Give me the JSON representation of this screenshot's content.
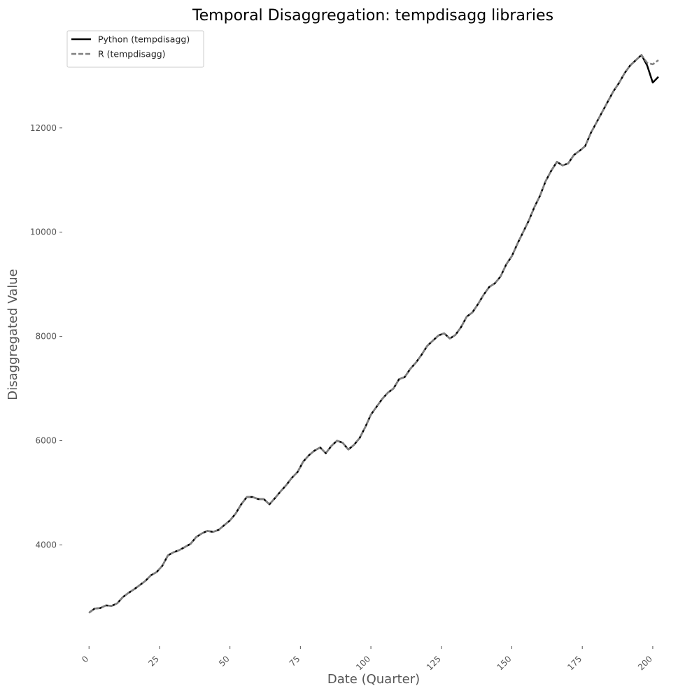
{
  "chart_data": {
    "type": "line",
    "title": "Temporal Disaggregation: tempdisagg libraries",
    "x_label": "Date (Quarter)",
    "y_label": "Disaggregated Value",
    "x": [
      0,
      2,
      4,
      6,
      8,
      10,
      12,
      14,
      16,
      18,
      20,
      22,
      24,
      26,
      28,
      30,
      32,
      34,
      36,
      38,
      40,
      42,
      44,
      46,
      48,
      50,
      52,
      54,
      56,
      58,
      60,
      62,
      64,
      66,
      68,
      70,
      72,
      74,
      76,
      78,
      80,
      82,
      84,
      86,
      88,
      90,
      92,
      94,
      96,
      98,
      100,
      102,
      104,
      106,
      108,
      110,
      112,
      114,
      116,
      118,
      120,
      122,
      124,
      126,
      128,
      130,
      132,
      134,
      136,
      138,
      140,
      142,
      144,
      146,
      148,
      150,
      152,
      154,
      156,
      158,
      160,
      162,
      164,
      166,
      168,
      170,
      172,
      174,
      176,
      178,
      180,
      182,
      184,
      186,
      188,
      190,
      192,
      194,
      196,
      198,
      200,
      202
    ],
    "series": [
      {
        "name": "Python (tempdisagg)",
        "color": "#000000",
        "linestyle": "solid",
        "values": [
          2700,
          2780,
          2790,
          2840,
          2830,
          2880,
          3000,
          3080,
          3150,
          3230,
          3310,
          3420,
          3480,
          3600,
          3800,
          3860,
          3900,
          3960,
          4020,
          4150,
          4220,
          4270,
          4250,
          4290,
          4380,
          4470,
          4600,
          4780,
          4920,
          4920,
          4880,
          4880,
          4780,
          4900,
          5030,
          5150,
          5290,
          5400,
          5600,
          5720,
          5810,
          5870,
          5760,
          5900,
          6000,
          5960,
          5830,
          5920,
          6050,
          6260,
          6500,
          6650,
          6800,
          6920,
          7000,
          7180,
          7220,
          7380,
          7500,
          7650,
          7820,
          7920,
          8020,
          8060,
          7960,
          8030,
          8180,
          8380,
          8460,
          8620,
          8800,
          8950,
          9020,
          9150,
          9380,
          9540,
          9780,
          10000,
          10220,
          10480,
          10700,
          10980,
          11180,
          11350,
          11280,
          11320,
          11480,
          11560,
          11650,
          11900,
          12100,
          12300,
          12500,
          12700,
          12860,
          13050,
          13200,
          13300,
          13400,
          13200,
          12870,
          12980
        ]
      },
      {
        "name": "R (tempdisagg)",
        "color": "#808080",
        "linestyle": "dashed",
        "values": [
          2700,
          2780,
          2790,
          2840,
          2830,
          2880,
          3000,
          3080,
          3150,
          3230,
          3310,
          3420,
          3480,
          3600,
          3800,
          3860,
          3900,
          3960,
          4020,
          4150,
          4220,
          4270,
          4250,
          4290,
          4380,
          4470,
          4600,
          4780,
          4920,
          4920,
          4880,
          4880,
          4780,
          4900,
          5030,
          5150,
          5290,
          5400,
          5600,
          5720,
          5810,
          5870,
          5760,
          5900,
          6000,
          5960,
          5830,
          5920,
          6050,
          6260,
          6500,
          6650,
          6800,
          6920,
          7000,
          7180,
          7220,
          7380,
          7500,
          7650,
          7820,
          7920,
          8020,
          8060,
          7960,
          8030,
          8180,
          8380,
          8460,
          8620,
          8800,
          8950,
          9020,
          9150,
          9380,
          9540,
          9780,
          10000,
          10220,
          10480,
          10700,
          10980,
          11180,
          11350,
          11280,
          11320,
          11480,
          11560,
          11650,
          11900,
          12100,
          12300,
          12500,
          12700,
          12860,
          13050,
          13200,
          13300,
          13400,
          13250,
          13220,
          13300
        ]
      }
    ],
    "xlim": [
      -8,
      203
    ],
    "ylim": [
      2100,
      13850
    ],
    "xticks": [
      0,
      25,
      50,
      75,
      100,
      125,
      150,
      175,
      200
    ],
    "yticks": [
      4000,
      6000,
      8000,
      10000,
      12000
    ],
    "legend": "upper left",
    "grid": false
  }
}
